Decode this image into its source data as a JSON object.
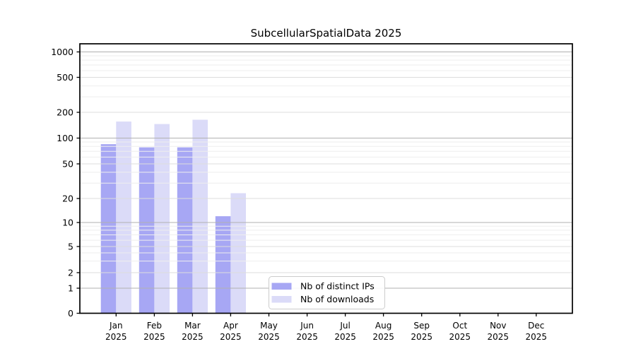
{
  "chart_data": {
    "type": "bar",
    "title": "SubcellularSpatialData 2025",
    "categories": [
      "Jan 2025",
      "Feb 2025",
      "Mar 2025",
      "Apr 2025",
      "May 2025",
      "Jun 2025",
      "Jul 2025",
      "Aug 2025",
      "Sep 2025",
      "Oct 2025",
      "Nov 2025",
      "Dec 2025"
    ],
    "series": [
      {
        "name": "Nb of distinct IPs",
        "color": "#a7a7f4",
        "values": [
          85,
          78,
          78,
          12,
          null,
          null,
          null,
          null,
          null,
          null,
          null,
          null
        ]
      },
      {
        "name": "Nb of downloads",
        "color": "#dbdbf8",
        "values": [
          156,
          146,
          164,
          23,
          null,
          null,
          null,
          null,
          null,
          null,
          null,
          null
        ]
      }
    ],
    "yticks": [
      0,
      1,
      2,
      5,
      10,
      20,
      50,
      100,
      200,
      500,
      1000
    ],
    "yscale": "symlog",
    "ylim": [
      0,
      1450
    ],
    "xlabel": "",
    "ylabel": "",
    "grid": true,
    "grid_over_bars": true,
    "legend_position": "inside-bottom-center",
    "colors": {
      "axis": "#000000",
      "grid_major": "#b0b0b0",
      "grid_mid": "#dcdcdc",
      "grid_minor": "#eeeeee",
      "legend_border": "#cccccc",
      "legend_background": "#ffffff"
    }
  }
}
